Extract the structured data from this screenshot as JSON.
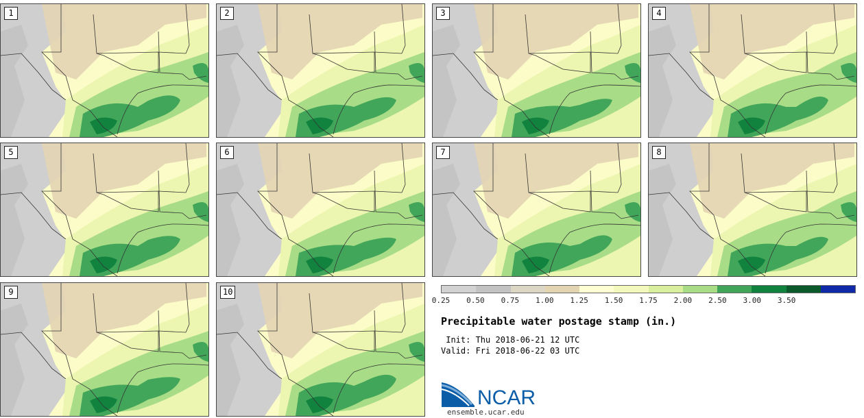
{
  "panels": [
    {
      "label": "1"
    },
    {
      "label": "2"
    },
    {
      "label": "3"
    },
    {
      "label": "4"
    },
    {
      "label": "5"
    },
    {
      "label": "6"
    },
    {
      "label": "7"
    },
    {
      "label": "8"
    },
    {
      "label": "9"
    },
    {
      "label": "10"
    }
  ],
  "colorbar": {
    "ticks": [
      "0.25",
      "0.50",
      "0.75",
      "1.00",
      "1.25",
      "1.50",
      "1.75",
      "2.00",
      "2.50",
      "3.00",
      "3.50"
    ],
    "colors": [
      "#d2d2d2",
      "#c3c3c3",
      "#dcd7c4",
      "#e3d4b2",
      "#ffffd4",
      "#f3f9bc",
      "#d9ef9d",
      "#a8dc86",
      "#42a65a",
      "#12823f",
      "#0c5a2c",
      "#1029a8"
    ]
  },
  "title": "Precipitable water postage stamp (in.)",
  "init": " Init: Thu 2018-06-21 12 UTC",
  "valid": "Valid: Fri 2018-06-22 03 UTC",
  "logo": {
    "text": "NCAR",
    "url_text": "ensemble.ucar.edu",
    "colors": {
      "text": "#0b5da8",
      "arc": "#0b5da8"
    }
  },
  "map_colors": {
    "gray": "#cfcfcf",
    "gray2": "#bdbdbd",
    "tan": "#e3d4b2",
    "pale": "#fcfcc8",
    "light": "#ecf6b0",
    "green1": "#a8dc86",
    "green2": "#42a65a",
    "green3": "#12823f",
    "border": "#333333"
  }
}
